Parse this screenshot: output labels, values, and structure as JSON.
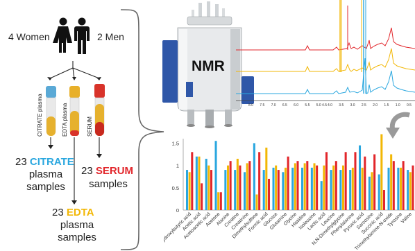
{
  "participants": {
    "women": "4 Women",
    "men": "2 Men"
  },
  "tubes": [
    {
      "label": "CITRATE plasma",
      "cap_color": "#5aa9d6",
      "fill_color": "#e6b12e"
    },
    {
      "label": "EDTA plasma",
      "cap_color": "#e8b02a",
      "fill_color": "#e6b12e"
    },
    {
      "label": "SERUM",
      "cap_color": "#d8332a",
      "fill_color": "#e6b12e"
    }
  ],
  "groups": {
    "citrate": {
      "count": "23",
      "keyword": "CITRATE",
      "line2": "plasma",
      "line3": "samples",
      "color": "#2aa7df"
    },
    "serum": {
      "count": "23",
      "keyword": "SERUM",
      "line2": "samples",
      "color": "#e2262b"
    },
    "edta": {
      "count": "23",
      "keyword": "EDTA",
      "line2": "plasma",
      "line3": "samples",
      "color": "#f2b705"
    }
  },
  "nmr": {
    "label": "NMR"
  },
  "spectrum": {
    "ticks": [
      "8.0",
      "7.5",
      "7.0",
      "6.5",
      "6.0",
      "5.5",
      "5.0 4.5",
      "4.0",
      "3.5",
      "3.0",
      "2.5",
      "2.0",
      "1.5",
      "1.0",
      "0.5"
    ],
    "series_colors": [
      "#e2262b",
      "#f2b705",
      "#2aa7df"
    ]
  },
  "chart_data": {
    "type": "bar",
    "ylim": [
      0,
      1.6
    ],
    "yticks": [
      "0",
      "0.5",
      "1",
      "1.5"
    ],
    "series_colors": [
      "#2aa7df",
      "#f2b705",
      "#e2262b"
    ],
    "categories": [
      "3-Hydroxybutyric acid",
      "Acetic acid",
      "Acetoacetic acid",
      "Acetone",
      "Alanine",
      "Creatine",
      "Creatinine",
      "Dimethylsulfone",
      "Formic acid",
      "Glucose",
      "Glutamine",
      "Glycine",
      "Histidine",
      "Isoleucine",
      "Lactic acid",
      "Leucine",
      "N,N-Dimethylglycine",
      "Phenylalanine",
      "Pyruvic acid",
      "Sarcosine",
      "Succinic acid",
      "Trimethylamine-N-oxide",
      "Tyrosine",
      "Valine"
    ],
    "series": [
      {
        "values": [
          0.9,
          1.2,
          1.15,
          1.55,
          0.9,
          0.9,
          0.85,
          1.5,
          0.9,
          0.95,
          0.85,
          0.95,
          0.95,
          0.95,
          0.65,
          0.9,
          0.9,
          0.9,
          1.45,
          0.75,
          0.8,
          0.95,
          0.95,
          0.9
        ]
      },
      {
        "values": [
          0.85,
          1.2,
          1.0,
          0.4,
          1.0,
          1.15,
          1.05,
          0.35,
          1.4,
          1.0,
          0.95,
          1.05,
          1.05,
          1.05,
          1.0,
          1.0,
          1.0,
          0.95,
          0.95,
          0.85,
          1.7,
          1.25,
          0.95,
          0.85
        ]
      },
      {
        "values": [
          1.3,
          0.6,
          0.9,
          0.4,
          1.1,
          1.0,
          1.1,
          1.3,
          0.7,
          0.9,
          1.2,
          1.1,
          1.1,
          1.0,
          1.3,
          1.1,
          1.3,
          1.3,
          1.2,
          1.25,
          0.45,
          1.1,
          1.1,
          1.0
        ]
      }
    ]
  }
}
